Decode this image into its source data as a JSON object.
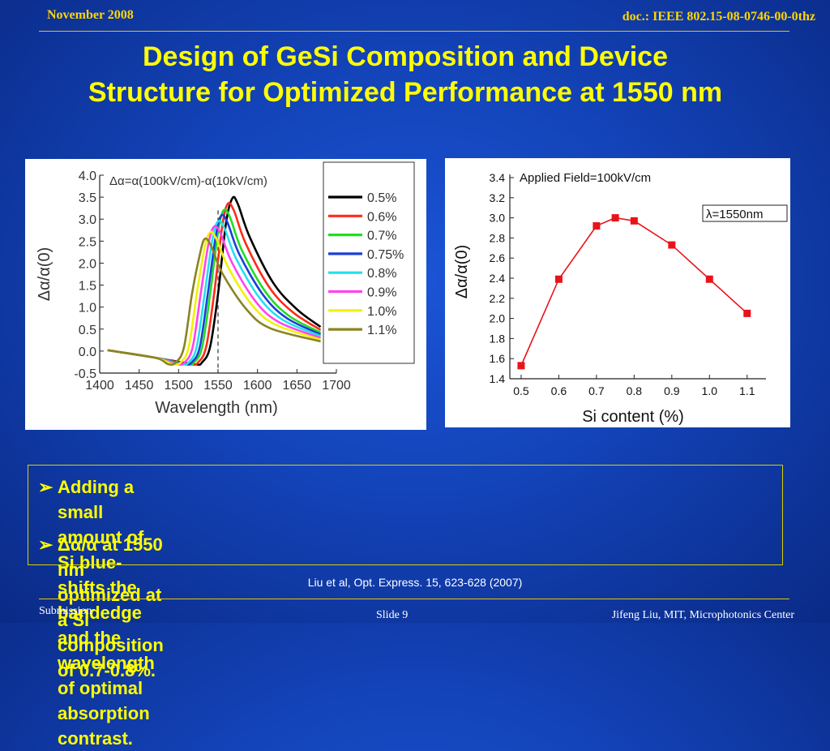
{
  "header": {
    "date": "November 2008",
    "doc": "doc.: IEEE 802.15-08-0746-00-0thz"
  },
  "title": {
    "line1": "Design of GeSi Composition and Device",
    "line2": "Structure for Optimized Performance at 1550 nm"
  },
  "bullets": [
    {
      "marker": "➢",
      "lines": [
        "Adding a small amount of Si blue-shifts the bandedge and the",
        "wavelength of optimal absorption contrast."
      ]
    },
    {
      "marker": "➢",
      "lines": [
        "Δα/α at 1550 nm optimized at a Si composition of 0.7-0.8%."
      ]
    }
  ],
  "citation": "Liu et al, Opt. Express. 15, 623-628  (2007)",
  "footer": {
    "left": "Submission",
    "middle": "Slide 9",
    "right": "Jifeng Liu, MIT, Microphotonics Center"
  },
  "colors": {
    "background": "#1343b8",
    "accent": "#ffff00",
    "header_text": "#ffd700"
  },
  "chart_data": [
    {
      "type": "line",
      "annotation": "Δα=α(100kV/cm)-α(10kV/cm)",
      "xlabel": "Wavelength (nm)",
      "ylabel": "Δα/α(0)",
      "xlim": [
        1400,
        1700
      ],
      "ylim": [
        -0.5,
        4.0
      ],
      "xticks": [
        1400,
        1450,
        1500,
        1550,
        1600,
        1650,
        1700
      ],
      "yticks": [
        -0.5,
        0.0,
        0.5,
        1.0,
        1.5,
        2.0,
        2.5,
        3.0,
        3.5,
        4.0
      ],
      "ytick_labels": [
        "-0.5",
        "0.0",
        "0.5",
        "1.0",
        "1.5",
        "2.0",
        "2.5",
        "3.0",
        "3.5",
        "4.0"
      ],
      "dashed_vline_x": 1550,
      "legend_position": "right",
      "series": [
        {
          "name": "0.5%",
          "color": "#000000",
          "x": [
            1410,
            1470,
            1520,
            1530,
            1540,
            1550,
            1560,
            1568,
            1575,
            1590,
            1620,
            1650,
            1680
          ],
          "y": [
            0.02,
            -0.15,
            -0.3,
            -0.25,
            0.1,
            1.3,
            2.9,
            3.47,
            3.35,
            2.6,
            1.55,
            0.95,
            0.55
          ]
        },
        {
          "name": "0.6%",
          "color": "#ff2a1a",
          "x": [
            1410,
            1470,
            1515,
            1525,
            1535,
            1545,
            1555,
            1562,
            1570,
            1585,
            1615,
            1645,
            1680
          ],
          "y": [
            0.02,
            -0.15,
            -0.3,
            -0.25,
            0.1,
            1.3,
            2.8,
            3.34,
            3.2,
            2.45,
            1.45,
            0.88,
            0.48
          ]
        },
        {
          "name": "0.7%",
          "color": "#22dd22",
          "x": [
            1410,
            1470,
            1510,
            1520,
            1530,
            1540,
            1550,
            1557,
            1565,
            1580,
            1610,
            1640,
            1680
          ],
          "y": [
            0.02,
            -0.15,
            -0.3,
            -0.25,
            0.1,
            1.3,
            2.7,
            3.2,
            3.05,
            2.3,
            1.35,
            0.8,
            0.42
          ]
        },
        {
          "name": "0.75%",
          "color": "#1a3fd8",
          "x": [
            1410,
            1470,
            1507,
            1517,
            1527,
            1537,
            1547,
            1554,
            1562,
            1577,
            1607,
            1637,
            1680
          ],
          "y": [
            0.02,
            -0.15,
            -0.3,
            -0.25,
            0.1,
            1.3,
            2.6,
            3.08,
            2.92,
            2.2,
            1.28,
            0.75,
            0.38
          ]
        },
        {
          "name": "0.8%",
          "color": "#22e0ee",
          "x": [
            1410,
            1470,
            1503,
            1513,
            1523,
            1533,
            1543,
            1550,
            1558,
            1573,
            1603,
            1633,
            1680
          ],
          "y": [
            0.02,
            -0.15,
            -0.3,
            -0.25,
            0.1,
            1.3,
            2.55,
            2.95,
            2.8,
            2.1,
            1.2,
            0.7,
            0.34
          ]
        },
        {
          "name": "0.9%",
          "color": "#ff44ee",
          "x": [
            1410,
            1470,
            1498,
            1508,
            1518,
            1528,
            1538,
            1545,
            1553,
            1568,
            1598,
            1628,
            1680
          ],
          "y": [
            0.02,
            -0.15,
            -0.3,
            -0.25,
            0.1,
            1.3,
            2.45,
            2.83,
            2.68,
            2.0,
            1.12,
            0.65,
            0.3
          ]
        },
        {
          "name": "1.0%",
          "color": "#f2f200",
          "x": [
            1410,
            1470,
            1493,
            1503,
            1513,
            1523,
            1533,
            1540,
            1548,
            1563,
            1593,
            1623,
            1680
          ],
          "y": [
            0.02,
            -0.15,
            -0.3,
            -0.25,
            0.1,
            1.3,
            2.35,
            2.7,
            2.55,
            1.9,
            1.05,
            0.6,
            0.26
          ]
        },
        {
          "name": "1.1%",
          "color": "#8a8420",
          "x": [
            1410,
            1470,
            1487,
            1497,
            1507,
            1517,
            1527,
            1533,
            1541,
            1556,
            1586,
            1616,
            1680
          ],
          "y": [
            0.02,
            -0.15,
            -0.3,
            -0.25,
            0.1,
            1.3,
            2.2,
            2.55,
            2.4,
            1.75,
            0.95,
            0.52,
            0.22
          ]
        }
      ]
    },
    {
      "type": "line",
      "annotation": "Applied Field=100kV/cm",
      "annotation2": "λ=1550nm",
      "xlabel": "Si content (%)",
      "ylabel": "Δα/α(0)",
      "xlim": [
        0.47,
        1.15
      ],
      "ylim": [
        1.4,
        3.4
      ],
      "xticks": [
        0.5,
        0.6,
        0.7,
        0.8,
        0.9,
        1.0,
        1.1
      ],
      "xtick_labels": [
        "0.5",
        "0.6",
        "0.7",
        "0.8",
        "0.9",
        "1.0",
        "1.1"
      ],
      "yticks": [
        1.4,
        1.6,
        1.8,
        2.0,
        2.2,
        2.4,
        2.6,
        2.8,
        3.0,
        3.2,
        3.4
      ],
      "ytick_labels": [
        "1.4",
        "1.6",
        "1.8",
        "2.0",
        "2.2",
        "2.4",
        "2.6",
        "2.8",
        "3.0",
        "3.2",
        "3.4"
      ],
      "series": [
        {
          "color": "#e8141a",
          "x": [
            0.5,
            0.6,
            0.7,
            0.75,
            0.8,
            0.9,
            1.0,
            1.1
          ],
          "y": [
            1.53,
            2.39,
            2.92,
            3.0,
            2.97,
            2.73,
            2.39,
            2.05
          ]
        }
      ]
    }
  ]
}
